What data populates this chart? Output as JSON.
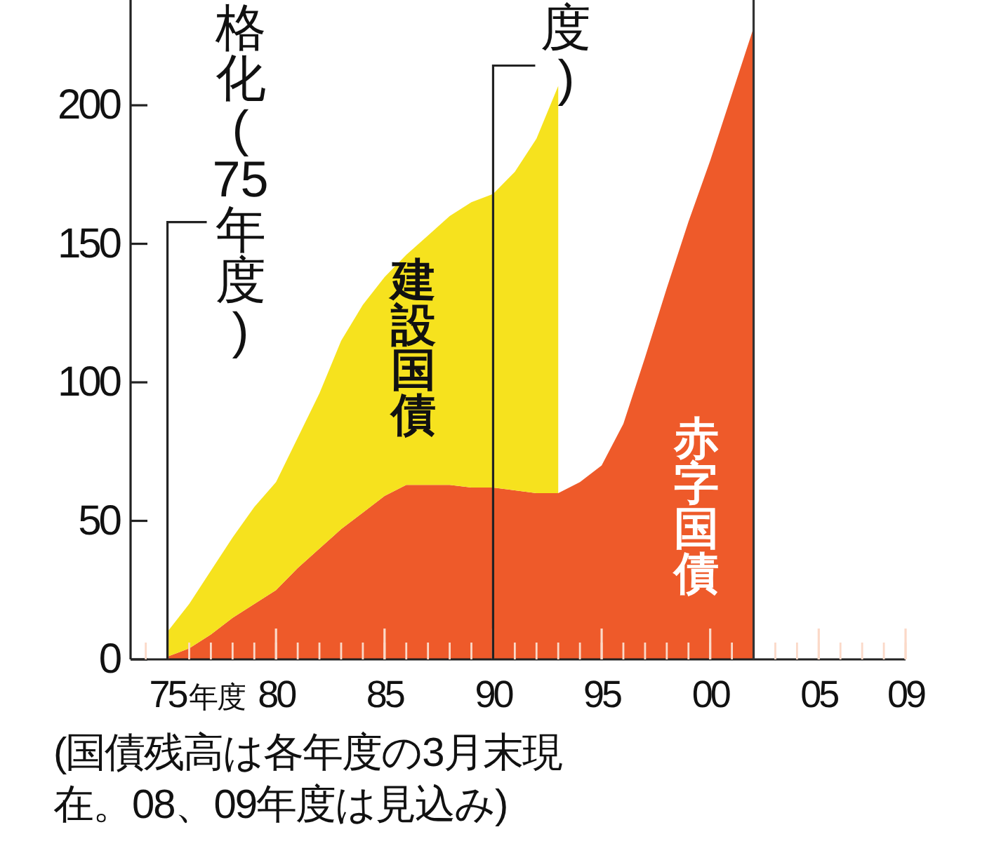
{
  "chart_data": {
    "type": "area",
    "stacked": true,
    "x": [
      1975,
      1976,
      1977,
      1978,
      1979,
      1980,
      1981,
      1982,
      1983,
      1984,
      1985,
      1986,
      1987,
      1988,
      1989,
      1990,
      1991,
      1992,
      1993,
      1994,
      1995,
      1996,
      1997,
      1998,
      1999,
      2000,
      2001,
      2002
    ],
    "series": [
      {
        "name": "赤字国債",
        "color": "#ee5a2a",
        "values": [
          1,
          4,
          9,
          15,
          20,
          25,
          33,
          40,
          47,
          53,
          59,
          63,
          63,
          63,
          62,
          62,
          61,
          60,
          60,
          64,
          70,
          85,
          109,
          134,
          158,
          180,
          204,
          228
        ]
      },
      {
        "name": "建設国債",
        "color": "#f6e21e",
        "values": [
          9,
          16,
          23,
          29,
          35,
          39,
          47,
          56,
          68,
          75,
          79,
          83,
          90,
          97,
          103,
          106,
          115,
          128,
          147,
          null,
          null,
          null,
          null,
          null,
          null,
          null,
          null,
          null
        ]
      }
    ],
    "xlim": [
      1973.3,
      2009
    ],
    "xticks": [
      {
        "value": 1975,
        "label": "75"
      },
      {
        "value": 1980,
        "label": "80"
      },
      {
        "value": 1985,
        "label": "85"
      },
      {
        "value": 1990,
        "label": "90"
      },
      {
        "value": 1995,
        "label": "95"
      },
      {
        "value": 2000,
        "label": "00"
      },
      {
        "value": 2005,
        "label": "05"
      },
      {
        "value": 2009,
        "label": "09"
      }
    ],
    "xlabel": "年度",
    "ylim": [
      0,
      238
    ],
    "yticks": [
      0,
      50,
      100,
      150,
      200
    ],
    "grid": false,
    "ref_lines": [
      {
        "axis": "x",
        "value": 1975,
        "label": "格化(75年度)",
        "color": "#222222"
      },
      {
        "axis": "x",
        "value": 1990,
        "label": "度)",
        "color": "#222222"
      },
      {
        "axis": "x",
        "value": 2002,
        "color": "#333333"
      }
    ],
    "annotations": [
      "(国債残高は各年度の3月末現在。08、09年度は見込み)"
    ]
  }
}
